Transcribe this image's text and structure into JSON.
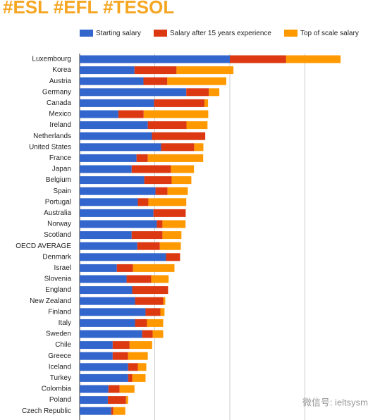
{
  "chart_data": {
    "type": "stacked_barh",
    "title": "#ESL #EFL #TESOL",
    "watermark": "微信号: ieltsysm",
    "categories": [
      "Luxembourg",
      "Korea",
      "Austria",
      "Germany",
      "Canada",
      "Mexico",
      "Ireland",
      "Netherlands",
      "United States",
      "France",
      "Japan",
      "Belgium",
      "Spain",
      "Portugal",
      "Australia",
      "Norway",
      "Scotland",
      "OECD AVERAGE",
      "Denmark",
      "Israel",
      "Slovenia",
      "England",
      "New Zealand",
      "Finland",
      "Italy",
      "Sweden",
      "Chile",
      "Greece",
      "Iceland",
      "Turkey",
      "Colombia",
      "Poland",
      "Czech Republic"
    ],
    "series": [
      {
        "name": "Starting salary",
        "color": "#3366cc",
        "values": [
          80,
          29.2,
          34,
          56.8,
          39.6,
          20.6,
          36.3,
          38.5,
          43.4,
          30.3,
          27.7,
          34.4,
          40.4,
          31,
          39.3,
          41.1,
          27.7,
          30.7,
          46,
          19.8,
          25,
          28,
          29.5,
          35.1,
          29.5,
          33.3,
          17.6,
          17.6,
          25.8,
          25.8,
          15.3,
          15,
          16.8
        ]
      },
      {
        "name": "Salary after 15 years experience",
        "color": "#dc3912",
        "values": [
          30,
          22.4,
          12.7,
          12,
          26.9,
          13.5,
          20.6,
          28.4,
          17.6,
          6,
          20.9,
          14.6,
          6.4,
          5.6,
          17.2,
          3,
          16.4,
          12,
          7.5,
          8.6,
          13.1,
          19.1,
          15,
          7.9,
          6.4,
          5.6,
          9,
          8.2,
          5.2,
          2.2,
          6,
          9.7,
          1.1
        ]
      },
      {
        "name": "Top of scale salary",
        "color": "#ff9900",
        "values": [
          29,
          30.3,
          31.4,
          5.6,
          1.9,
          34.4,
          11.2,
          0,
          4.9,
          29.5,
          12.3,
          10.5,
          10.8,
          20.2,
          0,
          12.3,
          10.1,
          11.2,
          0,
          22.1,
          9.3,
          0,
          1.1,
          2.2,
          8.6,
          5.6,
          12,
          10.5,
          4.5,
          7.1,
          7.9,
          1.1,
          6.4
        ]
      }
    ],
    "xlim": [
      0,
      160
    ],
    "grid": [
      40,
      80,
      120
    ]
  }
}
